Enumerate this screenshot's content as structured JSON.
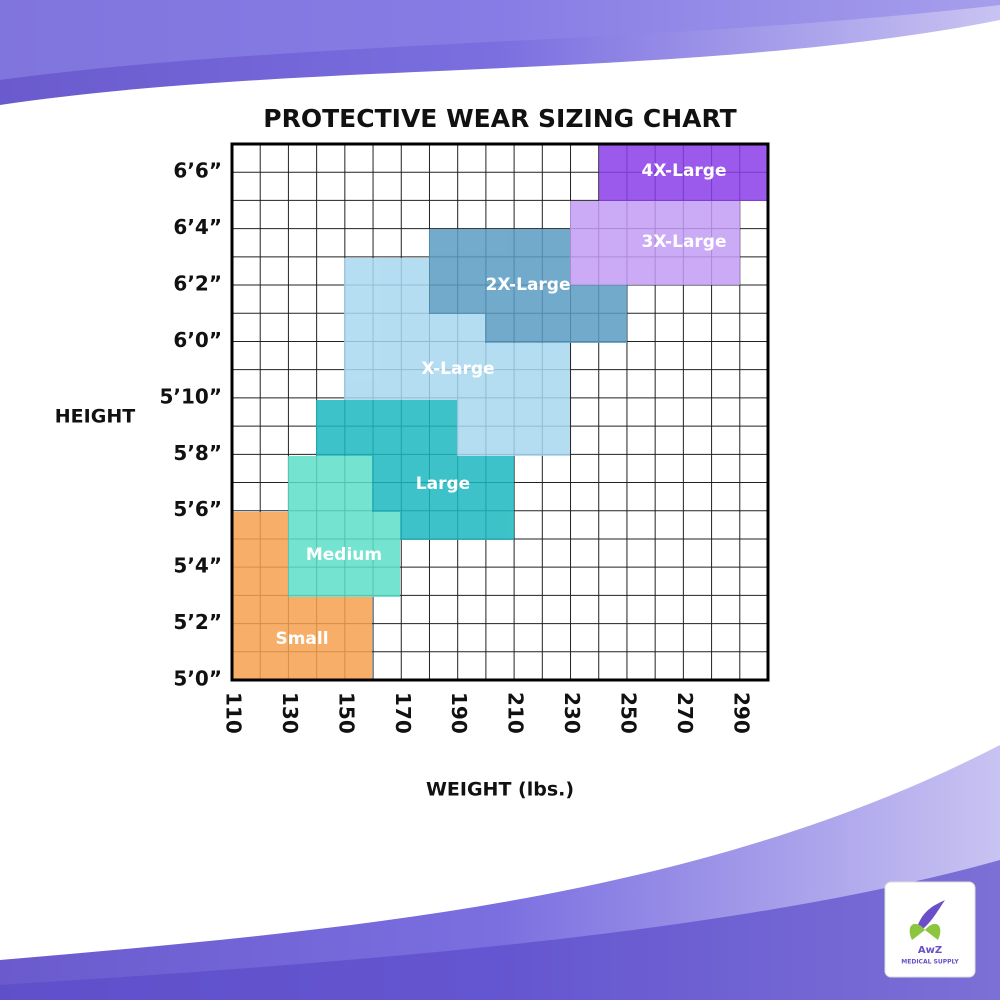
{
  "header": {
    "title": "PROTECTIVE WEAR SIZING CHART"
  },
  "y_axis": {
    "label": "HEIGHT",
    "ticks": [
      "6’6”",
      "6’4”",
      "6’2”",
      "6’0”",
      "5’10”",
      "5’8”",
      "5’6”",
      "5’4”",
      "5’2”",
      "5’0”"
    ]
  },
  "x_axis": {
    "label": "WEIGHT (lbs.)",
    "ticks": [
      "110",
      "130",
      "150",
      "170",
      "190",
      "210",
      "230",
      "250",
      "270",
      "290"
    ]
  },
  "sizes": [
    "Small",
    "Medium",
    "Large",
    "X-Large",
    "2X-Large",
    "3X-Large",
    "4X-Large"
  ],
  "logo": {
    "name": "AwZ",
    "tagline": "MEDICAL SUPPLY"
  }
}
